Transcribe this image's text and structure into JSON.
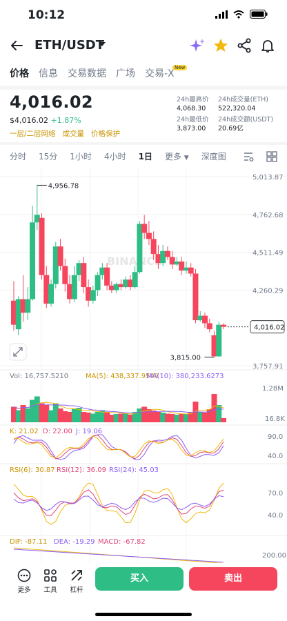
{
  "status": {
    "time": "10:12"
  },
  "header": {
    "pair": "ETH/USDT"
  },
  "tabs": [
    {
      "label": "价格"
    },
    {
      "label": "信息"
    },
    {
      "label": "交易数据"
    },
    {
      "label": "广场"
    },
    {
      "label": "交易-X"
    }
  ],
  "new_badge": "New",
  "ticker": {
    "price": "4,016.02",
    "usd_price": "$4,016.02",
    "change": "+1.87%",
    "links": [
      "一层/二层网络",
      "成交量",
      "价格保护"
    ],
    "high_label": "24h最高价",
    "high_value": "4,068.30",
    "low_label": "24h最低价",
    "low_value": "3,873.00",
    "vol_eth_label": "24h成交量(ETH)",
    "vol_eth_value": "522,320.04",
    "vol_usdt_label": "24h成交额(USDT)",
    "vol_usdt_value": "20.69亿"
  },
  "timeframes": [
    {
      "label": "分时"
    },
    {
      "label": "15分"
    },
    {
      "label": "1小时"
    },
    {
      "label": "4小时"
    },
    {
      "label": "1日"
    },
    {
      "label": "更多"
    },
    {
      "label": "深度图"
    }
  ],
  "chart_data": {
    "type": "candlestick",
    "y_axis_labels": [
      "5,013.87",
      "4,762.68",
      "4,511.49",
      "4,260.29",
      "3,757.91"
    ],
    "ylim": [
      3757.91,
      5013.87
    ],
    "max_marker": "4,956.78",
    "min_marker": "3,815.00",
    "current_price_tag": "4,016.02",
    "watermark": "BINANCE",
    "candles": [
      [
        4190,
        4030,
        4320,
        3990
      ],
      [
        4000,
        4200,
        4220,
        3960
      ],
      [
        4200,
        4110,
        4360,
        4050
      ],
      [
        4110,
        4200,
        4280,
        4060
      ],
      [
        4200,
        4710,
        4820,
        4190
      ],
      [
        4710,
        4760,
        4956.78,
        4660
      ],
      [
        4740,
        4360,
        4770,
        4330
      ],
      [
        4360,
        4170,
        4420,
        4140
      ],
      [
        4170,
        4300,
        4330,
        4150
      ],
      [
        4300,
        4550,
        4580,
        4270
      ],
      [
        4550,
        4420,
        4600,
        4390
      ],
      [
        4420,
        4300,
        4470,
        4250
      ],
      [
        4300,
        4200,
        4360,
        4170
      ],
      [
        4200,
        4360,
        4420,
        4180
      ],
      [
        4360,
        4440,
        4460,
        4320
      ],
      [
        4440,
        4280,
        4480,
        4240
      ],
      [
        4280,
        4190,
        4330,
        4150
      ],
      [
        4190,
        4260,
        4290,
        4170
      ],
      [
        4260,
        4360,
        4380,
        4220
      ],
      [
        4360,
        4410,
        4440,
        4330
      ],
      [
        4410,
        4290,
        4440,
        4260
      ],
      [
        4290,
        4260,
        4320,
        4240
      ],
      [
        4260,
        4300,
        4310,
        4240
      ],
      [
        4300,
        4280,
        4330,
        4260
      ],
      [
        4280,
        4330,
        4350,
        4270
      ],
      [
        4330,
        4280,
        4360,
        4260
      ],
      [
        4280,
        4380,
        4420,
        4270
      ],
      [
        4380,
        4700,
        4720,
        4370
      ],
      [
        4700,
        4640,
        4760,
        4600
      ],
      [
        4640,
        4600,
        4720,
        4560
      ],
      [
        4600,
        4500,
        4650,
        4460
      ],
      [
        4500,
        4440,
        4560,
        4400
      ],
      [
        4440,
        4520,
        4560,
        4420
      ],
      [
        4520,
        4480,
        4550,
        4460
      ],
      [
        4480,
        4430,
        4520,
        4400
      ],
      [
        4430,
        4450,
        4480,
        4420
      ],
      [
        4450,
        4390,
        4480,
        4360
      ],
      [
        4390,
        4410,
        4450,
        4370
      ],
      [
        4410,
        4370,
        4440,
        4350
      ],
      [
        4370,
        4060,
        4400,
        4040
      ],
      [
        4060,
        4090,
        4120,
        4050
      ],
      [
        4090,
        4040,
        4110,
        4010
      ],
      [
        4040,
        4000,
        4070,
        3980
      ],
      [
        3960,
        3820,
        3990,
        3815
      ],
      [
        3820,
        4030,
        4050,
        3815
      ],
      [
        4030,
        4016.02,
        4040,
        4000
      ]
    ],
    "indicators": {
      "vol": {
        "text": "Vol: 16,757.5210",
        "ma5": "MA(5): 438,337.9549",
        "ma10": "MA(10): 380,233.6273",
        "axis": [
          "1.28M",
          "16.8K"
        ]
      },
      "kdj": {
        "k": "K: 21.02",
        "d": "D: 22.00",
        "j": "J: 19.06",
        "axis": [
          "90.0",
          "40.0"
        ]
      },
      "rsi": {
        "r6": "RSI(6): 30.87",
        "r12": "RSI(12): 36.09",
        "r24": "RSI(24): 45.03",
        "axis": [
          "70.0",
          "40.0"
        ]
      },
      "macd": {
        "dif": "DIF: -87.11",
        "dea": "DEA: -19.29",
        "macd": "MACD: -67.82",
        "axis": [
          "200.00"
        ]
      }
    }
  },
  "bottom": {
    "more": "更多",
    "tools": "工具",
    "leverage": "杠杆",
    "buy": "买入",
    "sell": "卖出"
  },
  "colors": {
    "up": "#2ebd85",
    "down": "#f6465d",
    "accent": "#f0b90b"
  }
}
